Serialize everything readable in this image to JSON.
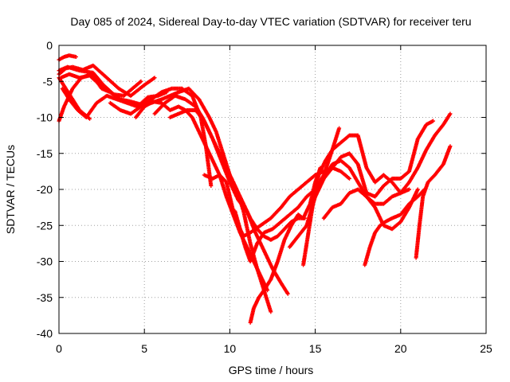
{
  "chart_data": {
    "type": "scatter",
    "title": "Day 085 of 2024, Sidereal Day-to-day VTEC variation (SDTVAR) for receiver teru",
    "xlabel": "GPS time / hours",
    "ylabel": "SDTVAR / TECUs",
    "xlim": [
      0,
      25
    ],
    "ylim": [
      -40,
      0
    ],
    "xticks": [
      "0",
      "5",
      "10",
      "15",
      "20",
      "25"
    ],
    "yticks": [
      "0",
      "-5",
      "-10",
      "-15",
      "-20",
      "-25",
      "-30",
      "-35",
      "-40"
    ],
    "grid": true,
    "marker_color": "#ff0000",
    "series": [
      {
        "x": [
          0.0,
          0.3,
          0.6,
          1.0
        ],
        "y": [
          -2.0,
          -1.6,
          -1.4,
          -1.6
        ]
      },
      {
        "x": [
          0.0,
          0.5,
          1.2,
          2.0,
          2.6,
          3.2,
          3.8,
          4.3,
          4.8
        ],
        "y": [
          -3.5,
          -3.0,
          -3.5,
          -3.8,
          -5.5,
          -6.8,
          -7.0,
          -6.0,
          -5.0
        ]
      },
      {
        "x": [
          0.0,
          0.4,
          0.8,
          1.4,
          2.0,
          2.8,
          3.5,
          4.2,
          5.0,
          5.6
        ],
        "y": [
          -4.0,
          -3.2,
          -3.0,
          -3.4,
          -2.8,
          -4.5,
          -6.0,
          -7.0,
          -5.5,
          -4.5
        ]
      },
      {
        "x": [
          0.1,
          0.6,
          1.2,
          1.8,
          2.4,
          3.0,
          3.6,
          4.2,
          4.8,
          5.4,
          6.0,
          6.6,
          7.2,
          7.8,
          8.3,
          8.6,
          8.9
        ],
        "y": [
          -4.5,
          -4.0,
          -4.5,
          -4.2,
          -5.5,
          -6.5,
          -7.5,
          -7.8,
          -8.2,
          -7.5,
          -6.5,
          -6.0,
          -6.0,
          -7.0,
          -10.0,
          -14.0,
          -19.5
        ]
      },
      {
        "x": [
          0.0,
          0.3,
          0.8,
          1.3,
          1.9,
          2.5,
          3.0
        ],
        "y": [
          -10.5,
          -8.5,
          -6.0,
          -4.5,
          -4.0,
          -6.0,
          -6.5
        ]
      },
      {
        "x": [
          0.2,
          0.6,
          1.1,
          1.6,
          2.2,
          2.8,
          3.4,
          4.0,
          4.6,
          5.2,
          5.8,
          6.3
        ],
        "y": [
          -6.0,
          -7.5,
          -9.0,
          -10.0,
          -8.0,
          -7.0,
          -7.5,
          -8.0,
          -8.5,
          -7.2,
          -7.0,
          -6.5
        ]
      },
      {
        "x": [
          0.0,
          0.4,
          0.8,
          1.2,
          1.8
        ],
        "y": [
          -4.5,
          -6.0,
          -7.5,
          -9.0,
          -10.2
        ]
      },
      {
        "x": [
          3.0,
          3.6,
          4.2,
          4.8,
          5.4,
          6.0,
          6.5,
          7.0,
          7.6,
          8.2,
          8.8,
          9.2,
          9.6,
          10.0,
          10.4,
          10.8,
          11.2,
          11.6,
          12.0,
          12.4
        ],
        "y": [
          -8.0,
          -9.0,
          -9.5,
          -8.5,
          -8.0,
          -7.5,
          -7.0,
          -6.5,
          -6.0,
          -7.5,
          -10.0,
          -12.0,
          -15.0,
          -18.0,
          -20.0,
          -23.0,
          -27.5,
          -31.0,
          -34.0,
          -37.0
        ]
      },
      {
        "x": [
          4.5,
          5.0,
          5.5,
          6.0,
          6.5,
          7.0,
          7.4,
          7.8,
          8.2,
          8.6,
          9.0,
          9.4,
          9.8,
          10.2,
          10.6,
          11.0,
          11.4,
          11.8,
          12.2
        ],
        "y": [
          -10.0,
          -8.5,
          -7.8,
          -8.0,
          -9.0,
          -8.5,
          -9.0,
          -10.0,
          -12.0,
          -14.0,
          -16.0,
          -18.0,
          -21.0,
          -23.5,
          -26.0,
          -28.0,
          -30.0,
          -32.0,
          -34.0
        ]
      },
      {
        "x": [
          5.6,
          6.2,
          6.8,
          7.4,
          8.0,
          8.4,
          8.8,
          9.2,
          9.6,
          10.0,
          10.4,
          10.8,
          11.2,
          11.6,
          12.0,
          12.4,
          12.8,
          13.2,
          13.6,
          14.0,
          14.4
        ],
        "y": [
          -9.5,
          -8.0,
          -7.0,
          -7.5,
          -8.5,
          -10.0,
          -12.0,
          -14.0,
          -16.0,
          -18.0,
          -20.0,
          -22.0,
          -24.0,
          -25.5,
          -26.5,
          -27.0,
          -26.5,
          -25.5,
          -24.5,
          -24.0,
          -24.0
        ]
      },
      {
        "x": [
          6.5,
          7.0,
          7.5,
          8.0,
          8.5,
          9.0,
          9.5,
          10.0,
          10.5,
          11.0,
          11.5,
          12.0,
          12.5,
          13.0,
          13.4
        ],
        "y": [
          -10.0,
          -9.5,
          -9.0,
          -9.0,
          -10.5,
          -13.0,
          -16.0,
          -19.0,
          -21.5,
          -23.0,
          -26.0,
          -28.5,
          -31.0,
          -33.0,
          -34.5
        ]
      },
      {
        "x": [
          8.5,
          9.0,
          9.4,
          9.8,
          10.0,
          10.2,
          10.5,
          10.8,
          11.2,
          11.8,
          12.4,
          13.0,
          13.5,
          14.0,
          14.5,
          15.0,
          15.5,
          16.0,
          16.5,
          17.0
        ],
        "y": [
          -18.0,
          -18.5,
          -18.0,
          -19.0,
          -21.0,
          -23.0,
          -25.0,
          -26.5,
          -26.0,
          -25.0,
          -24.0,
          -22.5,
          -21.0,
          -20.0,
          -19.0,
          -18.0,
          -17.5,
          -17.0,
          -17.5,
          -18.5
        ]
      },
      {
        "x": [
          10.3,
          10.6,
          10.9,
          11.2,
          11.6,
          12.0,
          12.5,
          13.0,
          13.5,
          14.0,
          14.5,
          15.0,
          15.5,
          16.0,
          16.4
        ],
        "y": [
          -23.0,
          -25.5,
          -28.0,
          -30.0,
          -27.5,
          -26.0,
          -25.5,
          -24.5,
          -23.5,
          -22.5,
          -21.0,
          -20.0,
          -18.0,
          -14.5,
          -11.5
        ]
      },
      {
        "x": [
          11.2,
          11.4,
          11.7,
          12.0,
          12.4,
          12.8,
          13.2,
          13.6,
          14.0,
          14.3,
          14.7,
          15.0,
          15.3
        ],
        "y": [
          -38.5,
          -36.5,
          -35.0,
          -34.0,
          -32.5,
          -30.0,
          -27.0,
          -25.0,
          -23.5,
          -24.0,
          -22.0,
          -19.0,
          -17.0
        ]
      },
      {
        "x": [
          13.5,
          14.0,
          14.5,
          15.0,
          15.5,
          16.0,
          16.5,
          17.0,
          17.5,
          18.0,
          18.5,
          19.0,
          19.5,
          20.0,
          20.5,
          21.0,
          21.5,
          22.0,
          22.5,
          22.9
        ],
        "y": [
          -28.0,
          -26.5,
          -25.0,
          -21.0,
          -18.5,
          -16.5,
          -16.0,
          -17.0,
          -19.0,
          -21.0,
          -22.0,
          -22.0,
          -21.0,
          -20.5,
          -19.0,
          -17.0,
          -14.5,
          -12.5,
          -11.0,
          -9.5
        ]
      },
      {
        "x": [
          14.3,
          14.6,
          14.9,
          15.2,
          15.6,
          16.0,
          16.5,
          17.0,
          17.5,
          18.0,
          18.5,
          19.0,
          19.5,
          20.0,
          20.5
        ],
        "y": [
          -30.5,
          -26.0,
          -21.5,
          -18.0,
          -16.0,
          -14.5,
          -13.5,
          -12.5,
          -12.5,
          -17.0,
          -19.0,
          -18.0,
          -19.0,
          -20.5,
          -20.0
        ]
      },
      {
        "x": [
          15.0,
          15.5,
          16.0,
          16.5,
          17.0,
          17.5,
          18.0,
          18.5,
          19.0,
          19.5,
          20.0,
          20.5,
          21.0,
          21.5,
          21.9
        ],
        "y": [
          -21.0,
          -18.5,
          -17.0,
          -15.5,
          -15.0,
          -16.5,
          -20.5,
          -21.0,
          -19.5,
          -18.5,
          -18.5,
          -17.5,
          -13.0,
          -11.0,
          -10.5
        ]
      },
      {
        "x": [
          15.5,
          16.0,
          16.5,
          17.0,
          17.5,
          18.0,
          18.5,
          19.0,
          19.5,
          20.0,
          20.5,
          21.0
        ],
        "y": [
          -24.0,
          -22.5,
          -22.0,
          -20.5,
          -20.0,
          -21.0,
          -22.5,
          -25.0,
          -25.5,
          -24.5,
          -22.5,
          -20.0
        ]
      },
      {
        "x": [
          17.9,
          18.2,
          18.5,
          18.8,
          19.1,
          19.5,
          20.0,
          20.5,
          21.0,
          21.4
        ],
        "y": [
          -30.5,
          -28.0,
          -26.0,
          -25.0,
          -24.5,
          -24.0,
          -23.5,
          -22.0,
          -21.0,
          -20.0
        ]
      },
      {
        "x": [
          20.9,
          21.1,
          21.3,
          21.6,
          22.0,
          22.5,
          22.9
        ],
        "y": [
          -29.5,
          -25.0,
          -21.0,
          -19.0,
          -18.0,
          -16.5,
          -14.0
        ]
      }
    ]
  }
}
